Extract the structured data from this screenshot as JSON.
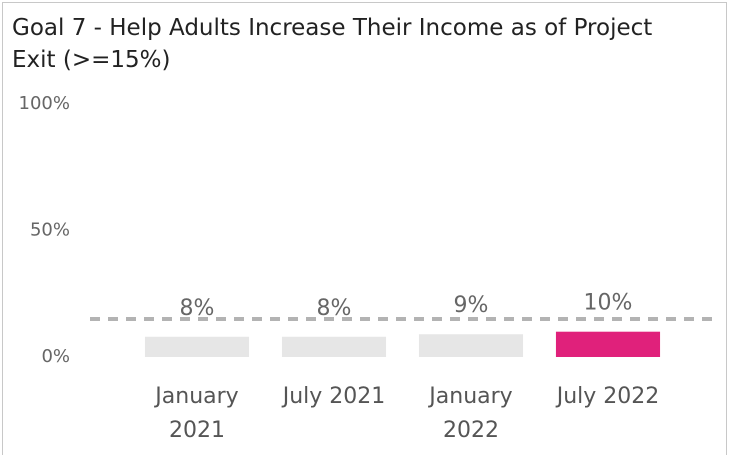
{
  "chart_data": {
    "type": "bar",
    "title": "Goal 7 - Help Adults Increase Their Income as of Project Exit (>=15%)",
    "categories": [
      "January 2021",
      "July 2021",
      "January 2022",
      "July 2022"
    ],
    "values": [
      8,
      8,
      9,
      10
    ],
    "value_labels": [
      "8%",
      "8%",
      "9%",
      "10%"
    ],
    "colors": [
      "#e6e6e6",
      "#e6e6e6",
      "#e6e6e6",
      "#e0217b"
    ],
    "target": 15,
    "target_color": "#b3b3b3",
    "ylim": [
      0,
      100
    ],
    "yticks": [
      {
        "value": 0,
        "label": "0%"
      },
      {
        "value": 50,
        "label": "50%"
      },
      {
        "value": 100,
        "label": "100%"
      }
    ],
    "grid": false
  }
}
